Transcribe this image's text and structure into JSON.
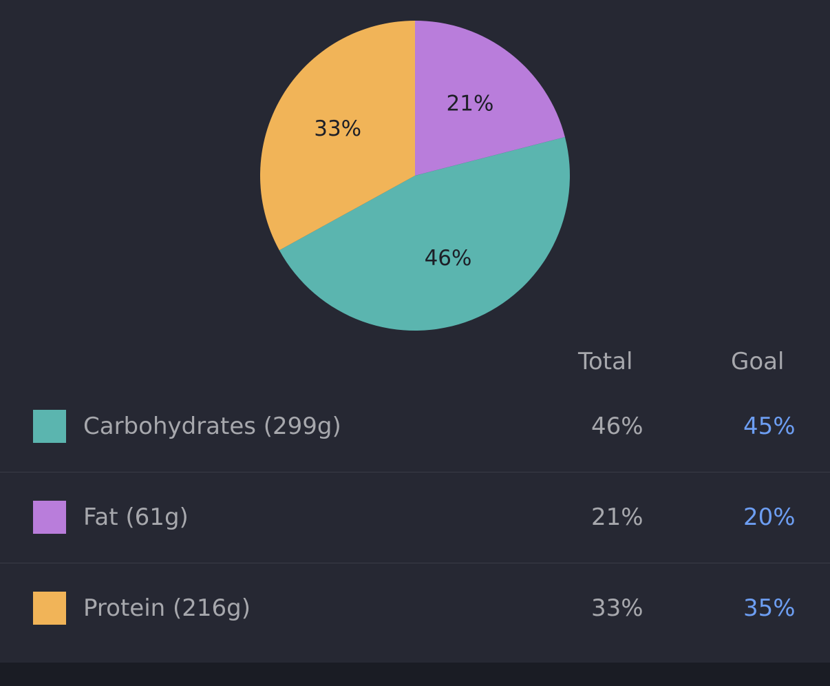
{
  "chart_data": {
    "type": "pie",
    "slices": [
      {
        "name": "Fat",
        "value": 21,
        "label": "21%",
        "color": "#b97ddb"
      },
      {
        "name": "Carbohydrates",
        "value": 46,
        "label": "46%",
        "color": "#5bb5af"
      },
      {
        "name": "Protein",
        "value": 33,
        "label": "33%",
        "color": "#f1b458"
      }
    ]
  },
  "table": {
    "headers": {
      "total": "Total",
      "goal": "Goal"
    },
    "rows": [
      {
        "label": "Carbohydrates (299g)",
        "total": "46%",
        "goal": "45%",
        "color": "#5bb5af"
      },
      {
        "label": "Fat (61g)",
        "total": "21%",
        "goal": "20%",
        "color": "#b97ddb"
      },
      {
        "label": "Protein (216g)",
        "total": "33%",
        "goal": "35%",
        "color": "#f1b458"
      }
    ]
  },
  "colors": {
    "background": "#262833",
    "goal_text": "#6d9ef2",
    "muted_text": "#a7a8ad"
  }
}
